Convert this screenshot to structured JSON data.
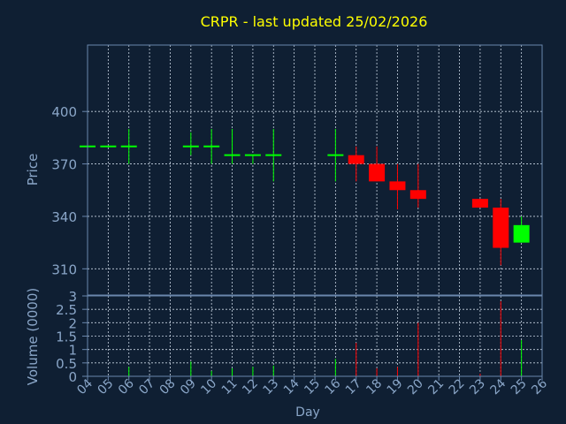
{
  "colors": {
    "background": "#0f1f33",
    "title": "#ffff00",
    "axis_text": "#8aa6c8",
    "frame": "#6a87ad",
    "grid": "#c8d4e2",
    "up": "#00ff00",
    "down": "#ff0000"
  },
  "chart_data": {
    "type": "candlestick",
    "title": "CRPR - last updated 25/02/2026",
    "xlabel": "Day",
    "price_ylabel": "Price",
    "volume_ylabel": "Volume (0000)",
    "x_ticks": [
      "04",
      "05",
      "06",
      "07",
      "08",
      "09",
      "10",
      "11",
      "12",
      "13",
      "14",
      "15",
      "16",
      "17",
      "18",
      "19",
      "20",
      "21",
      "22",
      "23",
      "24",
      "25",
      "26"
    ],
    "price_ylim": [
      295,
      438
    ],
    "price_ticks": [
      310,
      340,
      370,
      400
    ],
    "volume_ylim": [
      0,
      3
    ],
    "volume_ticks": [
      "0",
      "0.5",
      "1",
      "1.5",
      "2",
      "2.5",
      "3"
    ],
    "grid": true,
    "candles": [
      {
        "day": "04",
        "open": 380,
        "high": 380,
        "low": 380,
        "close": 380,
        "volume": 0
      },
      {
        "day": "05",
        "open": 380,
        "high": 380,
        "low": 380,
        "close": 380,
        "volume": 0
      },
      {
        "day": "06",
        "open": 380,
        "high": 390,
        "low": 370,
        "close": 380,
        "volume": 0.35
      },
      {
        "day": "09",
        "open": 380,
        "high": 388,
        "low": 375,
        "close": 380,
        "volume": 0.55
      },
      {
        "day": "10",
        "open": 380,
        "high": 390,
        "low": 370,
        "close": 380,
        "volume": 0.2
      },
      {
        "day": "11",
        "open": 375,
        "high": 390,
        "low": 370,
        "close": 375,
        "volume": 0.3
      },
      {
        "day": "12",
        "open": 375,
        "high": 375,
        "low": 370,
        "close": 375,
        "volume": 0.35
      },
      {
        "day": "13",
        "open": 375,
        "high": 390,
        "low": 360,
        "close": 375,
        "volume": 0.4
      },
      {
        "day": "16",
        "open": 375,
        "high": 390,
        "low": 360,
        "close": 375,
        "volume": 0.65
      },
      {
        "day": "17",
        "open": 375,
        "high": 380,
        "low": 360,
        "close": 370,
        "volume": 1.25
      },
      {
        "day": "18",
        "open": 370,
        "high": 380,
        "low": 360,
        "close": 360,
        "volume": 0.3
      },
      {
        "day": "19",
        "open": 360,
        "high": 370,
        "low": 344,
        "close": 355,
        "volume": 0.35
      },
      {
        "day": "20",
        "open": 355,
        "high": 370,
        "low": 345,
        "close": 350,
        "volume": 2.0
      },
      {
        "day": "23",
        "open": 350,
        "high": 350,
        "low": 345,
        "close": 345,
        "volume": 0.1
      },
      {
        "day": "24",
        "open": 345,
        "high": 350,
        "low": 312,
        "close": 322,
        "volume": 2.8
      },
      {
        "day": "25",
        "open": 325,
        "high": 340,
        "low": 325,
        "close": 335,
        "volume": 1.35
      }
    ]
  }
}
